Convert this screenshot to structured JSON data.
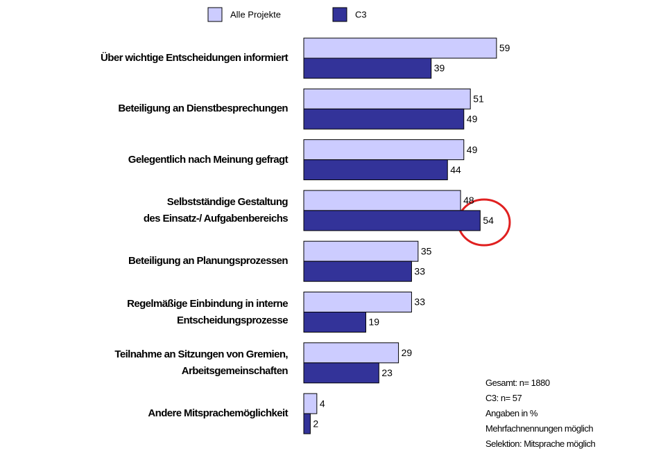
{
  "chart_data": {
    "type": "bar",
    "orientation": "horizontal",
    "categories": [
      "Über wichtige Entscheidungen informiert",
      "Beteiligung an Dienstbesprechungen",
      "Gelegentlich nach Meinung gefragt",
      "Selbstständige Gestaltung\ndes Einsatz-/ Aufgabenbereichs",
      "Beteiligung an Planungsprozessen",
      "Regelmäßige Einbindung in interne\nEntscheidungsprozesse",
      "Teilnahme an Sitzungen von Gremien,\nArbeitsgemeinschaften",
      "Andere Mitsprachemöglichkeit"
    ],
    "series": [
      {
        "name": "Alle Projekte",
        "color": "#ccccff",
        "values": [
          59,
          51,
          49,
          48,
          35,
          33,
          29,
          4
        ]
      },
      {
        "name": "C3",
        "color": "#333399",
        "values": [
          39,
          49,
          44,
          54,
          33,
          19,
          23,
          2
        ]
      }
    ],
    "xlim": [
      0,
      100
    ],
    "annotations": [
      "Gesamt: n= 1880",
      "C3: n= 57",
      "Angaben in %",
      "Mehrfachnennungen möglich",
      "Selektion: Mitsprache möglich"
    ]
  }
}
